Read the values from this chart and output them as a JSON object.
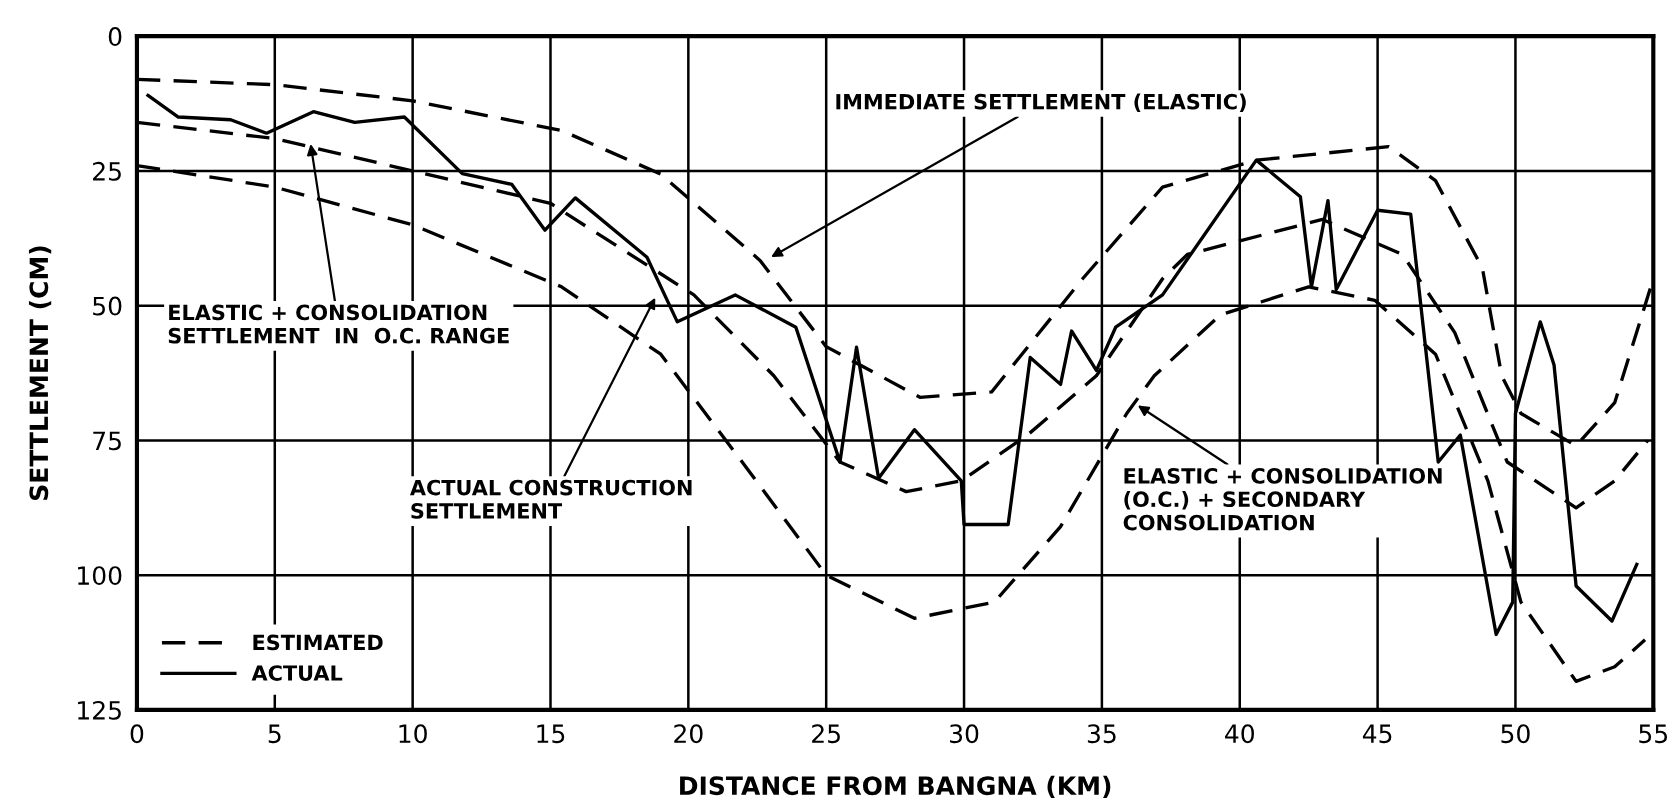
{
  "chart_data": {
    "type": "line",
    "xlabel": "DISTANCE FROM BANGNA (KM)",
    "ylabel": "SETTLEMENT (CM)",
    "xlim": [
      0,
      55
    ],
    "xticks": [
      0,
      5,
      10,
      15,
      20,
      25,
      30,
      35,
      40,
      45,
      50,
      55
    ],
    "ylim": [
      125,
      0
    ],
    "yticks": [
      0,
      25,
      50,
      75,
      100,
      125
    ],
    "grid": true,
    "legend": "bottom left",
    "marker": "none",
    "series": [
      {
        "name": "ESTIMATED",
        "color": "#000000",
        "line_style": "dashed",
        "x": [
          0,
          5,
          10,
          15.4,
          19,
          22.6,
          25,
          28.4,
          31,
          34.3,
          37.2,
          40.6,
          45.4,
          47.1,
          48.8,
          49.5,
          50.2,
          52.2,
          53.6,
          55
        ],
        "values": [
          8,
          9,
          12,
          17.5,
          25.6,
          41.6,
          57.6,
          67,
          66,
          45,
          28,
          23,
          20.5,
          26.8,
          43,
          63,
          70,
          76,
          68,
          45
        ]
      },
      {
        "color": "#000000",
        "line_style": "dashed",
        "x": [
          0,
          5,
          10,
          15,
          15.9,
          20.2,
          23.1,
          25.5,
          27.9,
          29.9,
          32.3,
          34.8,
          37.2,
          38.1,
          43,
          45.9,
          47.8,
          49.7,
          52.2,
          53.6,
          54.8
        ],
        "values": [
          16,
          19,
          25,
          31,
          34,
          48,
          63,
          79,
          84.5,
          82.5,
          74,
          63,
          45,
          40.5,
          34,
          40.5,
          55,
          79,
          87.5,
          82.5,
          75
        ]
      },
      {
        "color": "#000000",
        "line_style": "dashed",
        "x": [
          0,
          5,
          10,
          15.4,
          19,
          22.1,
          25,
          28.2,
          31.1,
          33.5,
          35.9,
          36.9,
          39.3,
          42.5,
          44.9,
          47.1,
          49,
          50.2,
          52.2,
          53.6,
          54.7
        ],
        "values": [
          24,
          28,
          35,
          46.5,
          59,
          80,
          100,
          108,
          105,
          91,
          70,
          63,
          51.7,
          46.5,
          49,
          59,
          82.5,
          105,
          119.7,
          117,
          112
        ]
      },
      {
        "name": "ACTUAL",
        "color": "#000000",
        "line_style": "solid",
        "x": [
          0.4,
          1.5,
          3.4,
          4.7,
          6.4,
          7.9,
          9.7,
          11.8,
          13.6,
          14.8,
          15.9,
          18.5,
          19.6,
          21.7,
          23.9,
          25.5,
          26.1,
          26.9,
          28.2,
          29.9,
          30,
          31.6,
          32.4,
          33.5,
          33.9,
          34.8,
          35.5,
          37.2,
          40.6,
          42.2,
          42.6,
          43.2,
          43.5,
          45,
          46.2,
          47.2,
          48,
          49.3,
          49.9,
          50,
          50.9,
          51.4,
          52.2,
          53.5,
          54.4
        ],
        "values": [
          11,
          15,
          15.5,
          18,
          14,
          16,
          15,
          25.5,
          27.5,
          36,
          30,
          41,
          53,
          48,
          54,
          79,
          57.7,
          82,
          73,
          82.5,
          90.6,
          90.6,
          59.6,
          64.6,
          54.7,
          62,
          54,
          48,
          23,
          29.8,
          46.5,
          30.5,
          47,
          32.3,
          33,
          79,
          74,
          111,
          105,
          70,
          53,
          61,
          102,
          108.5,
          98
        ]
      }
    ],
    "annotations": [
      {
        "text": "IMMEDIATE SETTLEMENT (ELASTIC)",
        "x": 23,
        "y": 41
      },
      {
        "text": "ELASTIC + CONSOLIDATION\nSETTLEMENT  IN  O.C. RANGE",
        "x": 6.3,
        "y": 20
      },
      {
        "text": "ACTUAL CONSTRUCTION\nSETTLEMENT",
        "x": 18.8,
        "y": 48.5
      },
      {
        "text": "ELASTIC + CONSOLIDATION\n(O.C.) + SECONDARY\nCONSOLIDATION",
        "x": 36.3,
        "y": 68.5
      }
    ]
  }
}
